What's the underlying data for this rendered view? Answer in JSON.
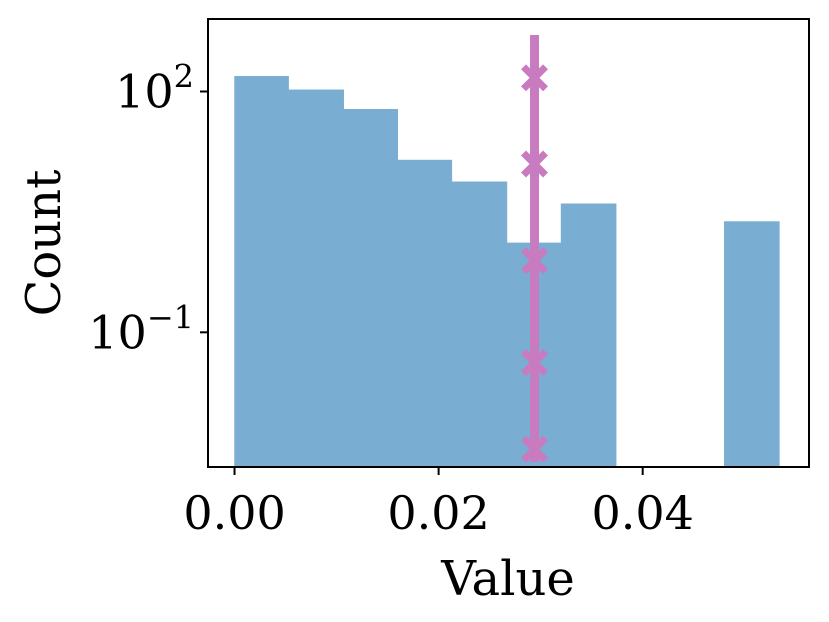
{
  "chart_data": {
    "type": "bar",
    "xlabel": "Value",
    "ylabel": "Count",
    "yscale": "log",
    "grid": false,
    "x_ticks": [
      {
        "value": 0.0,
        "label": "0.00"
      },
      {
        "value": 0.02,
        "label": "0.02"
      },
      {
        "value": 0.04,
        "label": "0.04"
      }
    ],
    "y_ticks": [
      {
        "value": 100,
        "base": "10",
        "exp": "2"
      },
      {
        "value": 0.1,
        "base": "10",
        "exp": "−1"
      }
    ],
    "xlim": [
      -0.0026,
      0.0563
    ],
    "ylim": [
      0.0021,
      800
    ],
    "bins": [
      {
        "x0": 0.0,
        "x1": 0.0053,
        "count": 155
      },
      {
        "x0": 0.0053,
        "x1": 0.0107,
        "count": 105
      },
      {
        "x0": 0.0107,
        "x1": 0.016,
        "count": 60
      },
      {
        "x0": 0.016,
        "x1": 0.0213,
        "count": 14
      },
      {
        "x0": 0.0213,
        "x1": 0.0267,
        "count": 7.5
      },
      {
        "x0": 0.0267,
        "x1": 0.032,
        "count": 1.3
      },
      {
        "x0": 0.032,
        "x1": 0.0374,
        "count": 4.0
      },
      {
        "x0": 0.0374,
        "x1": 0.0427,
        "count": 0
      },
      {
        "x0": 0.0427,
        "x1": 0.048,
        "count": 0
      },
      {
        "x0": 0.048,
        "x1": 0.0534,
        "count": 2.4
      }
    ],
    "vline": {
      "x": 0.0294,
      "markers_y": [
        148,
        12.5,
        0.78,
        0.042,
        0.0035
      ]
    },
    "colors": {
      "bars": "#7aadd2",
      "vline": "#c97bc0",
      "axes": "#000000"
    }
  }
}
